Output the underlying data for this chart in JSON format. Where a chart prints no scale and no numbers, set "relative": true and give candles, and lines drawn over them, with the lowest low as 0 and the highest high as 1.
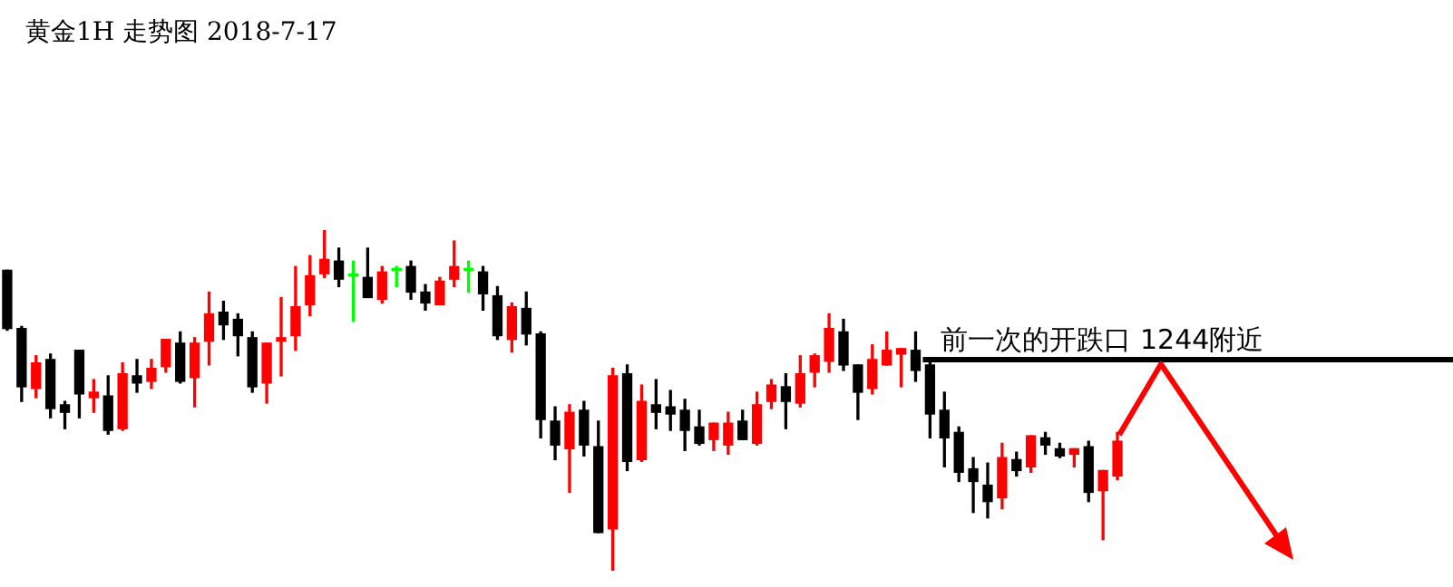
{
  "chart_data": {
    "type": "candlestick",
    "title": "黄金1H 走势图 2018-7-17",
    "relative": true,
    "categories": [
      null,
      null,
      null,
      null,
      null,
      null,
      null,
      null,
      null,
      null,
      null,
      null,
      null,
      null,
      null,
      null,
      null,
      null,
      null,
      null,
      null,
      null,
      null,
      null,
      null,
      null,
      null,
      null,
      null,
      null,
      null,
      null,
      null,
      null,
      null,
      null,
      null,
      null,
      null,
      null,
      null,
      null,
      null,
      null,
      null,
      null,
      null,
      null,
      null,
      null,
      null,
      null,
      null,
      null,
      null,
      null,
      null,
      null,
      null,
      null,
      null,
      null,
      null,
      null,
      null,
      null,
      null,
      null,
      null,
      null,
      null,
      null,
      null,
      null,
      null,
      null,
      null,
      null
    ],
    "ohlc": [
      [
        0.882,
        0.882,
        0.706,
        0.711
      ],
      [
        0.711,
        0.717,
        0.497,
        0.54
      ],
      [
        0.535,
        0.631,
        0.508,
        0.61
      ],
      [
        0.62,
        0.636,
        0.449,
        0.476
      ],
      [
        0.487,
        0.497,
        0.417,
        0.465
      ],
      [
        0.647,
        0.647,
        0.449,
        0.519
      ],
      [
        0.508,
        0.561,
        0.465,
        0.524
      ],
      [
        0.513,
        0.572,
        0.401,
        0.412
      ],
      [
        0.417,
        0.61,
        0.412,
        0.578
      ],
      [
        0.572,
        0.62,
        0.524,
        0.551
      ],
      [
        0.556,
        0.62,
        0.535,
        0.594
      ],
      [
        0.599,
        0.679,
        0.583,
        0.679
      ],
      [
        0.668,
        0.701,
        0.551,
        0.556
      ],
      [
        0.567,
        0.684,
        0.481,
        0.668
      ],
      [
        0.674,
        0.818,
        0.604,
        0.754
      ],
      [
        0.759,
        0.791,
        0.679,
        0.722
      ],
      [
        0.738,
        0.754,
        0.631,
        0.69
      ],
      [
        0.684,
        0.701,
        0.524,
        0.54
      ],
      [
        0.551,
        0.668,
        0.492,
        0.668
      ],
      [
        0.674,
        0.802,
        0.572,
        0.684
      ],
      [
        0.69,
        0.893,
        0.647,
        0.775
      ],
      [
        0.781,
        0.925,
        0.749,
        0.866
      ],
      [
        0.872,
        1,
        0.861,
        0.914
      ],
      [
        0.909,
        0.947,
        0.834,
        0.856
      ],
      [
        0.866,
        0.909,
        0.733,
        0.866
      ],
      [
        0.861,
        0.947,
        0.802,
        0.802
      ],
      [
        0.797,
        0.893,
        0.786,
        0.877
      ],
      [
        0.882,
        0.893,
        0.834,
        0.882
      ],
      [
        0.893,
        0.909,
        0.797,
        0.818
      ],
      [
        0.818,
        0.84,
        0.765,
        0.786
      ],
      [
        0.781,
        0.861,
        0.781,
        0.85
      ],
      [
        0.856,
        0.968,
        0.834,
        0.893
      ],
      [
        0.882,
        0.909,
        0.818,
        0.882
      ],
      [
        0.877,
        0.893,
        0.765,
        0.813
      ],
      [
        0.807,
        0.834,
        0.679,
        0.69
      ],
      [
        0.679,
        0.786,
        0.642,
        0.775
      ],
      [
        0.77,
        0.818,
        0.663,
        0.695
      ],
      [
        0.695,
        0.701,
        0.39,
        0.444
      ],
      [
        0.439,
        0.481,
        0.326,
        0.369
      ],
      [
        0.358,
        0.487,
        0.23,
        0.465
      ],
      [
        0.471,
        0.497,
        0.337,
        0.369
      ],
      [
        0.364,
        0.439,
        0.112,
        0.112
      ],
      [
        0.123,
        0.594,
        0,
        0.572
      ],
      [
        0.578,
        0.604,
        0.294,
        0.321
      ],
      [
        0.326,
        0.545,
        0.321,
        0.497
      ],
      [
        0.487,
        0.561,
        0.417,
        0.465
      ],
      [
        0.481,
        0.529,
        0.412,
        0.46
      ],
      [
        0.471,
        0.503,
        0.353,
        0.412
      ],
      [
        0.422,
        0.471,
        0.369,
        0.374
      ],
      [
        0.385,
        0.433,
        0.353,
        0.433
      ],
      [
        0.369,
        0.465,
        0.342,
        0.433
      ],
      [
        0.439,
        0.471,
        0.385,
        0.385
      ],
      [
        0.374,
        0.524,
        0.369,
        0.487
      ],
      [
        0.497,
        0.561,
        0.476,
        0.545
      ],
      [
        0.54,
        0.578,
        0.417,
        0.497
      ],
      [
        0.492,
        0.631,
        0.481,
        0.578
      ],
      [
        0.583,
        0.636,
        0.54,
        0.631
      ],
      [
        0.615,
        0.754,
        0.583,
        0.711
      ],
      [
        0.701,
        0.738,
        0.588,
        0.604
      ],
      [
        0.604,
        0.604,
        0.444,
        0.524
      ],
      [
        0.535,
        0.663,
        0.519,
        0.62
      ],
      [
        0.604,
        0.701,
        0.604,
        0.647
      ],
      [
        0.636,
        0.652,
        0.54,
        0.652
      ],
      [
        0.647,
        0.701,
        0.556,
        0.588
      ],
      [
        0.604,
        0.615,
        0.39,
        0.46
      ],
      [
        0.471,
        0.524,
        0.305,
        0.39
      ],
      [
        0.406,
        0.422,
        0.262,
        0.289
      ],
      [
        0.299,
        0.332,
        0.171,
        0.262
      ],
      [
        0.251,
        0.316,
        0.155,
        0.203
      ],
      [
        0.214,
        0.374,
        0.182,
        0.332
      ],
      [
        0.326,
        0.348,
        0.278,
        0.294
      ],
      [
        0.305,
        0.396,
        0.289,
        0.396
      ],
      [
        0.39,
        0.406,
        0.342,
        0.369
      ],
      [
        0.358,
        0.374,
        0.332,
        0.337
      ],
      [
        0.342,
        0.358,
        0.305,
        0.358
      ],
      [
        0.364,
        0.38,
        0.203,
        0.23
      ],
      [
        0.235,
        0.294,
        0.091,
        0.294
      ],
      [
        0.278,
        0.406,
        0.267,
        0.38
      ]
    ],
    "colors": [
      "#000000",
      "#000000",
      "#ff0000",
      "#000000",
      "#000000",
      "#000000",
      "#ff0000",
      "#000000",
      "#ff0000",
      "#000000",
      "#ff0000",
      "#ff0000",
      "#000000",
      "#ff0000",
      "#ff0000",
      "#000000",
      "#000000",
      "#000000",
      "#ff0000",
      "#ff0000",
      "#ff0000",
      "#ff0000",
      "#ff0000",
      "#000000",
      "#00ff00",
      "#000000",
      "#ff0000",
      "#00ff00",
      "#000000",
      "#000000",
      "#ff0000",
      "#ff0000",
      "#00ff00",
      "#000000",
      "#000000",
      "#ff0000",
      "#000000",
      "#000000",
      "#000000",
      "#ff0000",
      "#000000",
      "#000000",
      "#ff0000",
      "#000000",
      "#ff0000",
      "#000000",
      "#000000",
      "#000000",
      "#000000",
      "#ff0000",
      "#ff0000",
      "#000000",
      "#ff0000",
      "#ff0000",
      "#000000",
      "#ff0000",
      "#ff0000",
      "#ff0000",
      "#000000",
      "#000000",
      "#ff0000",
      "#ff0000",
      "#ff0000",
      "#000000",
      "#000000",
      "#000000",
      "#000000",
      "#000000",
      "#000000",
      "#ff0000",
      "#000000",
      "#ff0000",
      "#000000",
      "#000000",
      "#ff0000",
      "#000000",
      "#ff0000",
      "#ff0000"
    ],
    "ref_lines": [
      {
        "axis": "y",
        "value": 0.62,
        "label": "前一次的开跌口 1244附近",
        "color": "#000000"
      }
    ]
  }
}
